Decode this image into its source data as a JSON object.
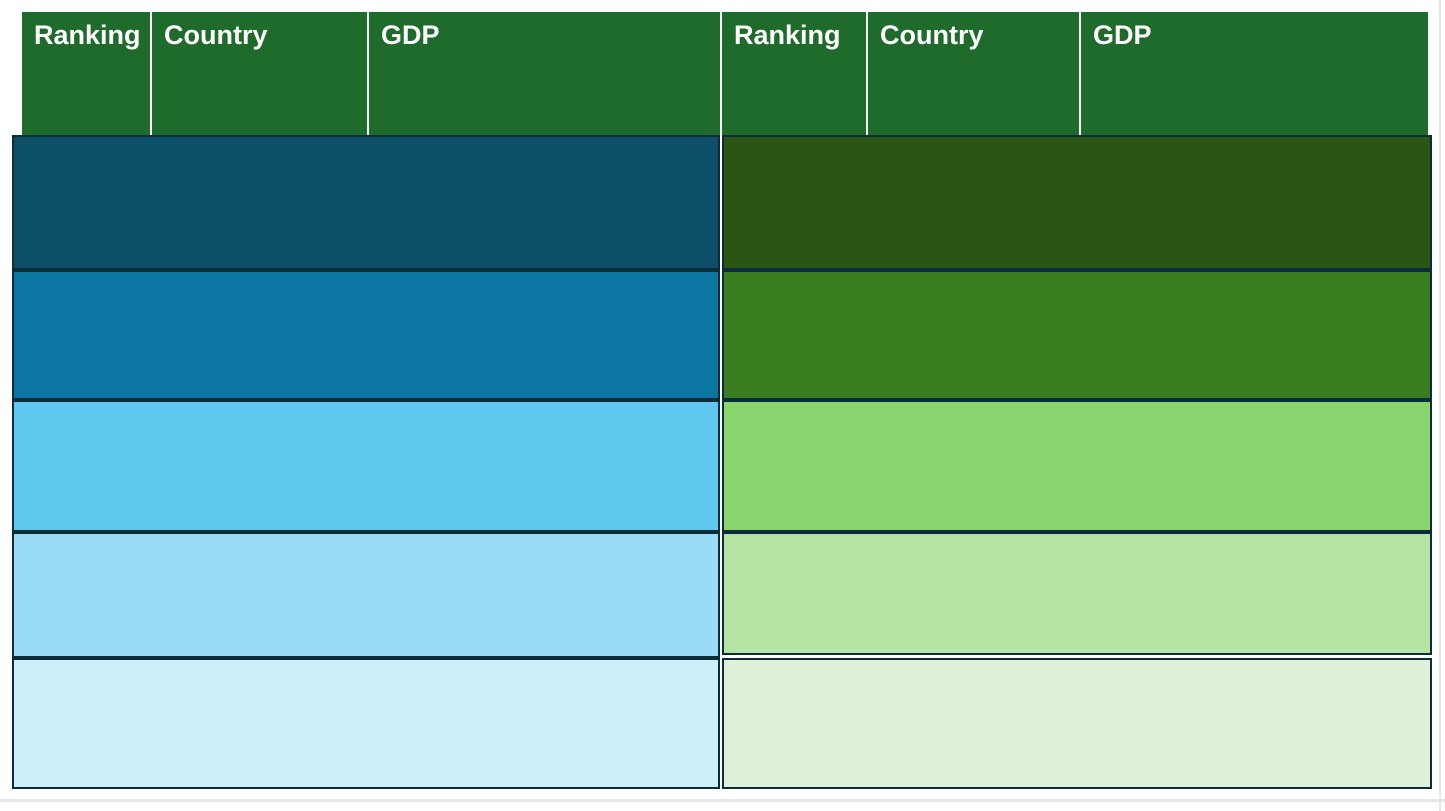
{
  "table": {
    "header": {
      "left": {
        "ranking": "Ranking",
        "country": "Country",
        "gdp": "GDP"
      },
      "right": {
        "ranking": "Ranking",
        "country": "Country",
        "gdp": "GDP"
      }
    },
    "rows_per_side": 5,
    "row_text": [
      "",
      "",
      "",
      "",
      ""
    ]
  },
  "colors": {
    "header_bg": "#1e6b2c",
    "header_text": "#ffffff",
    "row_border": "#0d2c3a",
    "left_rows": [
      "#0d4f66",
      "#0b76a1",
      "#5ec8ef",
      "#9adcf5",
      "#cdeefb"
    ],
    "right_rows": [
      "#2a5514",
      "#3b7e21",
      "#8ad46e",
      "#b4e3a3",
      "#def0d7"
    ],
    "slide_edge_line": "#e6e6e6",
    "page_bg": "#ffffff"
  }
}
